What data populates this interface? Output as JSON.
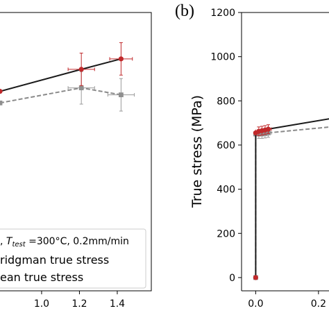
{
  "chart_data": [
    {
      "panel": "left",
      "type": "line",
      "xlabel": "",
      "ylabel": "",
      "x_ticks": [
        1.0,
        1.2,
        1.4
      ],
      "x_tick_labels": [
        "1.0",
        "1.2",
        "1.4"
      ],
      "xlim": [
        0.78,
        1.58
      ],
      "ylim": [
        0,
        1200
      ],
      "grid": false,
      "legend": {
        "placement": "bottom-left",
        "title_prefix": ", ",
        "title_var": "T",
        "title_sub": "test",
        "title_suffix": " =300°C, 0.2mm/min",
        "entries": [
          "ridgman true stress",
          "ean true stress"
        ]
      },
      "series": [
        {
          "key": "bridgman",
          "color": "#1a1a1a",
          "marker_color": "#c0292b",
          "marker": "circle",
          "dashed": false,
          "points": [
            {
              "x": 0.78,
              "y": 860
            },
            {
              "x": 1.21,
              "y": 955,
              "yerr": 70,
              "xerr": 0.07
            },
            {
              "x": 1.42,
              "y": 1000,
              "yerr": 70,
              "xerr": 0.06
            }
          ]
        },
        {
          "key": "mean",
          "color": "#8a8a8a",
          "marker_color": "#8f8f8f",
          "marker": "square",
          "dashed": true,
          "points": [
            {
              "x": 0.78,
              "y": 810
            },
            {
              "x": 1.21,
              "y": 875,
              "yerr": 70,
              "xerr": 0.07
            },
            {
              "x": 1.42,
              "y": 845,
              "yerr": 70,
              "xerr": 0.07
            }
          ]
        }
      ]
    },
    {
      "panel": "right",
      "panel_label": "(b)",
      "type": "line",
      "ylabel": "True stress (MPa)",
      "ylim": [
        -60,
        1200
      ],
      "y_ticks": [
        0,
        200,
        400,
        600,
        800,
        1000,
        1200
      ],
      "y_tick_labels": [
        "0",
        "200",
        "400",
        "600",
        "800",
        "1000",
        "1200"
      ],
      "x_ticks": [
        0.0,
        0.2
      ],
      "x_tick_labels": [
        "0.0",
        "0.2"
      ],
      "xlim": [
        -0.045,
        0.26
      ],
      "grid": false,
      "series": [
        {
          "key": "bridgman",
          "color": "#1a1a1a",
          "marker_color": "#c0292b",
          "marker": "circle",
          "dashed": false,
          "points": [
            {
              "x": 0.0,
              "y": 0
            },
            {
              "x": 0.0,
              "y": 655
            },
            {
              "x": 0.01,
              "y": 662,
              "yerr": 20,
              "xerr": 0.01
            },
            {
              "x": 0.02,
              "y": 665,
              "yerr": 20,
              "xerr": 0.01
            },
            {
              "x": 0.03,
              "y": 668,
              "yerr": 20,
              "xerr": 0.01
            },
            {
              "x": 0.04,
              "y": 672,
              "yerr": 20,
              "xerr": 0.01
            },
            {
              "x": 0.26,
              "y": 725
            }
          ]
        },
        {
          "key": "mean",
          "color": "#8a8a8a",
          "marker_color": "#8f8f8f",
          "marker": "square",
          "dashed": true,
          "points": [
            {
              "x": 0.0,
              "y": 0
            },
            {
              "x": 0.0,
              "y": 650
            },
            {
              "x": 0.01,
              "y": 650,
              "yerr": 20,
              "xerr": 0.01
            },
            {
              "x": 0.02,
              "y": 650,
              "yerr": 20,
              "xerr": 0.01
            },
            {
              "x": 0.03,
              "y": 652,
              "yerr": 20,
              "xerr": 0.01
            },
            {
              "x": 0.04,
              "y": 655,
              "yerr": 20,
              "xerr": 0.01
            },
            {
              "x": 0.26,
              "y": 685
            }
          ]
        }
      ]
    }
  ]
}
